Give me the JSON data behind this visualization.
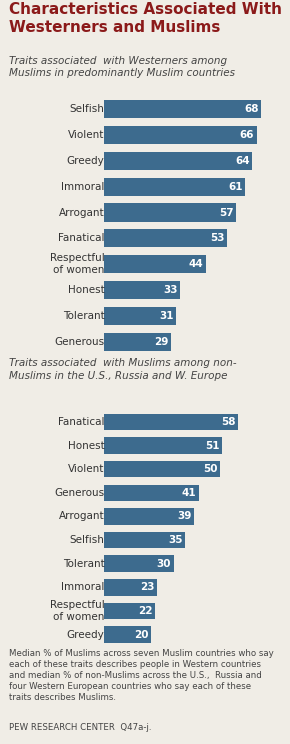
{
  "title": "Characteristics Associated With\nWesterners and Muslims",
  "subtitle1_plain": "Traits associated  with Westerners among\nMuslims in predominantly Muslim countries",
  "subtitle2_plain": "Traits associated  with Muslims among non-\nMuslims in the U.S., Russia and W. Europe",
  "footnote": "Median % of Muslims across seven Muslim countries who say\neach of these traits describes people in Western countries\nand median % of non-Muslims across the U.S.,  Russia and\nfour Western European countries who say each of these\ntraits describes Muslims.",
  "source": "PEW RESEARCH CENTER  Q47a-j.",
  "section1_labels": [
    "Selfish",
    "Violent",
    "Greedy",
    "Immoral",
    "Arrogant",
    "Fanatical",
    "Respectful\nof women",
    "Honest",
    "Tolerant",
    "Generous"
  ],
  "section1_values": [
    68,
    66,
    64,
    61,
    57,
    53,
    44,
    33,
    31,
    29
  ],
  "section2_labels": [
    "Fanatical",
    "Honest",
    "Violent",
    "Generous",
    "Arrogant",
    "Selfish",
    "Tolerant",
    "Immoral",
    "Respectful\nof women",
    "Greedy"
  ],
  "section2_values": [
    58,
    51,
    50,
    41,
    39,
    35,
    30,
    23,
    22,
    20
  ],
  "bar_color": "#3d6b8e",
  "bg_color_title": "#ffffff",
  "bg_color_body": "#f0ede6",
  "title_color": "#8b1a1a",
  "bar_xlim": [
    0,
    78
  ],
  "label_fontsize": 7.5,
  "value_fontsize": 7.5,
  "title_fontsize": 11,
  "subtitle_fontsize": 7.5,
  "footnote_fontsize": 6.2,
  "bar_height": 0.7
}
